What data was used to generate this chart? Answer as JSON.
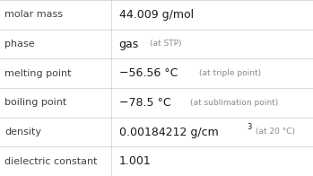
{
  "rows": [
    {
      "label": "molar mass",
      "main": "44.009 g/mol",
      "sup": "",
      "annotation": ""
    },
    {
      "label": "phase",
      "main": "gas",
      "sup": "",
      "annotation": "(at STP)"
    },
    {
      "label": "melting point",
      "main": "−56.56 °C",
      "sup": "",
      "annotation": "(at triple point)"
    },
    {
      "label": "boiling point",
      "main": "−78.5 °C",
      "sup": "",
      "annotation": "(at sublimation point)"
    },
    {
      "label": "density",
      "main": "0.00184212 g/cm",
      "sup": "3",
      "annotation": "(at 20 °C)"
    },
    {
      "label": "dielectric constant",
      "main": "1.001",
      "sup": "",
      "annotation": ""
    }
  ],
  "col_split": 0.355,
  "bg_color": "#ffffff",
  "label_color": "#404040",
  "value_color": "#1a1a1a",
  "annotation_color": "#888888",
  "line_color": "#cccccc",
  "label_fontsize": 8.0,
  "value_fontsize": 9.0,
  "annotation_fontsize": 6.5,
  "sup_fontsize": 6.0
}
